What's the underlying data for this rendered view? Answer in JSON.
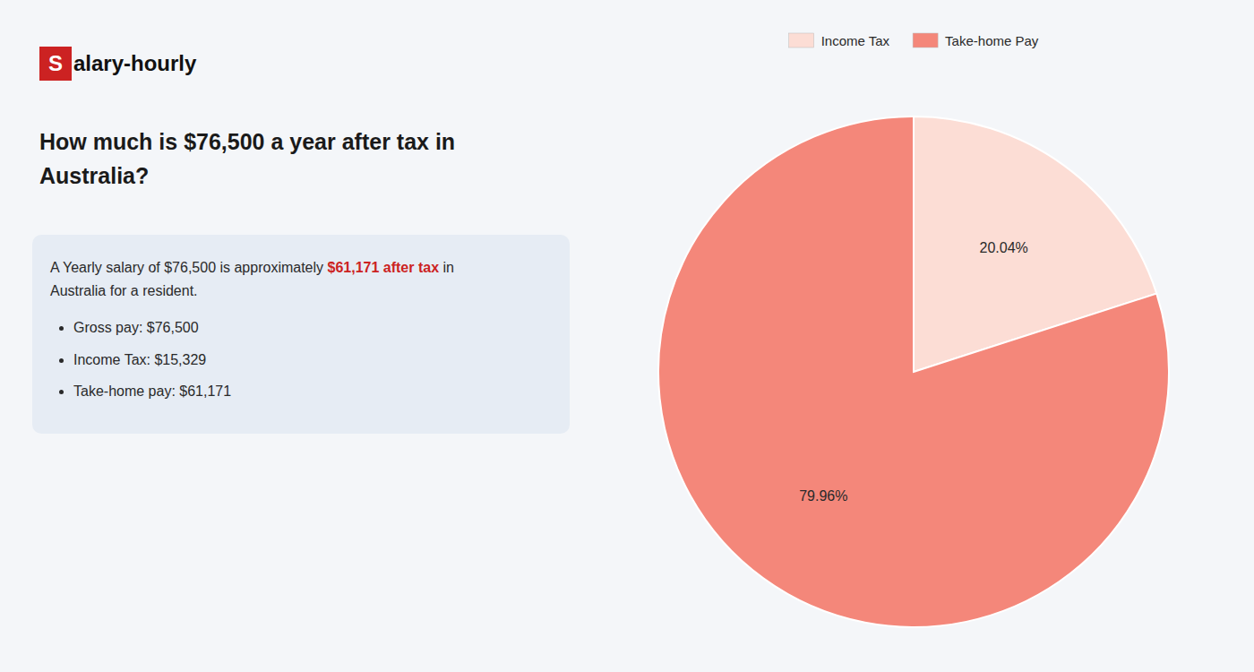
{
  "chart_data": {
    "type": "pie",
    "title": "How much is $76,500 a year after tax in Australia?",
    "categories": [
      "Income Tax",
      "Take-home Pay"
    ],
    "values": [
      20.04,
      79.96
    ],
    "value_labels": [
      "20.04%",
      "79.96%"
    ],
    "colors": [
      "#fcddd5",
      "#f4877a"
    ],
    "data_labels": true,
    "legend": "top",
    "annotations": [
      "S",
      "alary-hourly",
      "A Yearly salary of $76,500 is approximately ",
      "$61,171 after tax",
      " in",
      "Australia for a resident.",
      "Gross pay: $76,500",
      "Income Tax: $15,329",
      "Take-home pay: $61,171"
    ]
  }
}
